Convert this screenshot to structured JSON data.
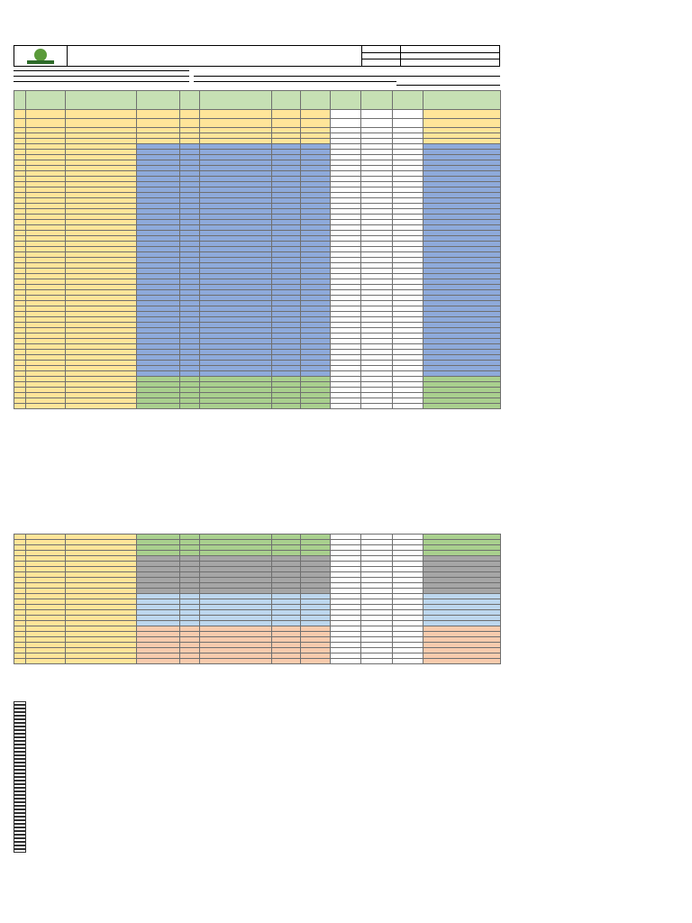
{
  "header": {
    "left_lines": [],
    "center_lines": [],
    "right_labels": [],
    "right_values": []
  },
  "meta": {
    "left": [],
    "center": [],
    "right": []
  },
  "table": {
    "columns": [],
    "rows_top": [],
    "rows_bottom": []
  },
  "totals": {
    "label": "",
    "right_label": ""
  },
  "side_note": "",
  "footer": {
    "signature_label": "",
    "slogan": "",
    "address": ""
  }
}
